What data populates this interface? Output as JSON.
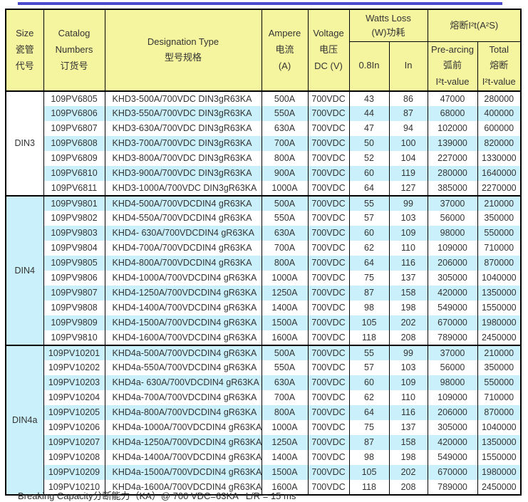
{
  "colors": {
    "top_bar": "#4b4bcb",
    "header_bg": "#f5f5a0",
    "stripe_bg": "#caf1fb",
    "border": "#000000",
    "text": "#333333"
  },
  "table": {
    "headers": {
      "size": "Size\n瓷管\n代号",
      "catalog": "Catalog\nNumbers\n订货号",
      "designation": "Designation Type\n型号规格",
      "ampere": "Ampere\n电流\n(A)",
      "voltage": "Voltage\n电压\nDC (V)",
      "watts_loss": "Watts Loss\n(W)功耗",
      "i2t": "熔断I²t(A²S)",
      "w08": "0.8In",
      "win": "In",
      "prearcing": "Pre-arcing\n弧前\nI²t-value",
      "total": "Total\n熔断\nI²t-value"
    },
    "groups": [
      {
        "size": "DIN3",
        "rows": [
          {
            "catalog": "109PV6805",
            "designation": "KHD3-500A/700VDC DIN3gR63KA",
            "ampere": "500A",
            "voltage": "700VDC",
            "w08": "43",
            "win": "86",
            "prearcing": "47000",
            "total": "280000"
          },
          {
            "catalog": "109PV6806",
            "designation": "KHD3-550A/700VDC DIN3gR63KA",
            "ampere": "550A",
            "voltage": "700VDC",
            "w08": "44",
            "win": "87",
            "prearcing": "68000",
            "total": "400000"
          },
          {
            "catalog": "109PV6807",
            "designation": "KHD3-630A/700VDC DIN3gR63KA",
            "ampere": "630A",
            "voltage": "700VDC",
            "w08": "47",
            "win": "94",
            "prearcing": "102000",
            "total": "600000"
          },
          {
            "catalog": "109PV6808",
            "designation": "KHD3-700A/700VDC DIN3gR63KA",
            "ampere": "700A",
            "voltage": "700VDC",
            "w08": "50",
            "win": "100",
            "prearcing": "139000",
            "total": "820000"
          },
          {
            "catalog": "109PV6809",
            "designation": "KHD3-800A/700VDC DIN3gR63KA",
            "ampere": "800A",
            "voltage": "700VDC",
            "w08": "52",
            "win": "104",
            "prearcing": "227000",
            "total": "1330000"
          },
          {
            "catalog": "109PV6810",
            "designation": "KHD3-900A/700VDC DIN3gR63KA",
            "ampere": "900A",
            "voltage": "700VDC",
            "w08": "60",
            "win": "119",
            "prearcing": "280000",
            "total": "1640000"
          },
          {
            "catalog": "109PV6811",
            "designation": "KHD3-1000A/700VDC DIN3gR63KA",
            "ampere": "1000A",
            "voltage": "700VDC",
            "w08": "64",
            "win": "127",
            "prearcing": "385000",
            "total": "2270000"
          }
        ]
      },
      {
        "size": "DIN4",
        "rows": [
          {
            "catalog": "109PV9801",
            "designation": "KHD4-500A/700VDCDIN4 gR63KA",
            "ampere": "500A",
            "voltage": "700VDC",
            "w08": "55",
            "win": "99",
            "prearcing": "37000",
            "total": "210000"
          },
          {
            "catalog": "109PV9802",
            "designation": "KHD4-550A/700VDCDIN4 gR63KA",
            "ampere": "550A",
            "voltage": "700VDC",
            "w08": "57",
            "win": "103",
            "prearcing": "56000",
            "total": "350000"
          },
          {
            "catalog": "109PV9803",
            "designation": "KHD4- 630A/700VDCDIN4 gR63KA",
            "ampere": "630A",
            "voltage": "700VDC",
            "w08": "60",
            "win": "109",
            "prearcing": "98000",
            "total": "550000"
          },
          {
            "catalog": "109PV9804",
            "designation": "KHD4-700A/700VDCDIN4 gR63KA",
            "ampere": "700A",
            "voltage": "700VDC",
            "w08": "62",
            "win": "110",
            "prearcing": "109000",
            "total": "710000"
          },
          {
            "catalog": "109PV9805",
            "designation": "KHD4-800A/700VDCDIN4 gR63KA",
            "ampere": "800A",
            "voltage": "700VDC",
            "w08": "64",
            "win": "116",
            "prearcing": "206000",
            "total": "870000"
          },
          {
            "catalog": "109PV9806",
            "designation": "KHD4-1000A/700VDCDIN4 gR63KA",
            "ampere": "1000A",
            "voltage": "700VDC",
            "w08": "75",
            "win": "137",
            "prearcing": "305000",
            "total": "1040000"
          },
          {
            "catalog": "109PV9807",
            "designation": "KHD4-1250A/700VDCDIN4 gR63KA",
            "ampere": "1250A",
            "voltage": "700VDC",
            "w08": "87",
            "win": "158",
            "prearcing": "420000",
            "total": "1350000"
          },
          {
            "catalog": "109PV9808",
            "designation": "KHD4-1400A/700VDCDIN4 gR63KA",
            "ampere": "1400A",
            "voltage": "700VDC",
            "w08": "98",
            "win": "198",
            "prearcing": "549000",
            "total": "1550000"
          },
          {
            "catalog": "109PV9809",
            "designation": "KHD4-1500A/700VDCDIN4 gR63KA",
            "ampere": "1500A",
            "voltage": "700VDC",
            "w08": "105",
            "win": "202",
            "prearcing": "670000",
            "total": "1980000"
          },
          {
            "catalog": "109PV9810",
            "designation": "KHD4-1600A/700VDCDIN4 gR63KA",
            "ampere": "1600A",
            "voltage": "700VDC",
            "w08": "118",
            "win": "208",
            "prearcing": "789000",
            "total": "2450000"
          }
        ]
      },
      {
        "size": "DIN4a",
        "rows": [
          {
            "catalog": "109PV10201",
            "designation": "KHD4a-500A/700VDCDIN4 gR63KA",
            "ampere": "500A",
            "voltage": "700VDC",
            "w08": "55",
            "win": "99",
            "prearcing": "37000",
            "total": "210000"
          },
          {
            "catalog": "109PV10202",
            "designation": "KHD4a-550A/700VDCDIN4 gR63KA",
            "ampere": "550A",
            "voltage": "700VDC",
            "w08": "57",
            "win": "103",
            "prearcing": "56000",
            "total": "350000"
          },
          {
            "catalog": "109PV10203",
            "designation": "KHD4a- 630A/700VDCDIN4 gR63KA",
            "ampere": "630A",
            "voltage": "700VDC",
            "w08": "60",
            "win": "109",
            "prearcing": "98000",
            "total": "550000"
          },
          {
            "catalog": "109PV10204",
            "designation": "KHD4a-700A/700VDCDIN4 gR63KA",
            "ampere": "700A",
            "voltage": "700VDC",
            "w08": "62",
            "win": "110",
            "prearcing": "109000",
            "total": "710000"
          },
          {
            "catalog": "109PV10205",
            "designation": "KHD4a-800A/700VDCDIN4 gR63KA",
            "ampere": "800A",
            "voltage": "700VDC",
            "w08": "64",
            "win": "116",
            "prearcing": "206000",
            "total": "870000"
          },
          {
            "catalog": "109PV10206",
            "designation": "KHD4a-1000A/700VDCDIN4 gR63KA",
            "ampere": "1000A",
            "voltage": "700VDC",
            "w08": "75",
            "win": "137",
            "prearcing": "305000",
            "total": "1040000"
          },
          {
            "catalog": "109PV10207",
            "designation": "KHD4a-1250A/700VDCDIN4 gR63KA",
            "ampere": "1250A",
            "voltage": "700VDC",
            "w08": "87",
            "win": "158",
            "prearcing": "420000",
            "total": "1350000"
          },
          {
            "catalog": "109PV10208",
            "designation": "KHD4a-1400A/700VDCDIN4 gR63KA",
            "ampere": "1400A",
            "voltage": "700VDC",
            "w08": "98",
            "win": "198",
            "prearcing": "549000",
            "total": "1550000"
          },
          {
            "catalog": "109PV10209",
            "designation": "KHD4a-1500A/700VDCDIN4 gR63KA",
            "ampere": "1500A",
            "voltage": "700VDC",
            "w08": "105",
            "win": "202",
            "prearcing": "670000",
            "total": "1980000"
          },
          {
            "catalog": "109PV10210",
            "designation": "KHD4a-1600A/700VDCDIN4 gR63KA",
            "ampere": "1600A",
            "voltage": "700VDC",
            "w08": "118",
            "win": "208",
            "prearcing": "789000",
            "total": "2450000"
          }
        ]
      }
    ]
  },
  "footer": {
    "note": "Breaking Capacity分断能力（KA）@ 700 VDC=63KA   L/R = 15 ms"
  }
}
